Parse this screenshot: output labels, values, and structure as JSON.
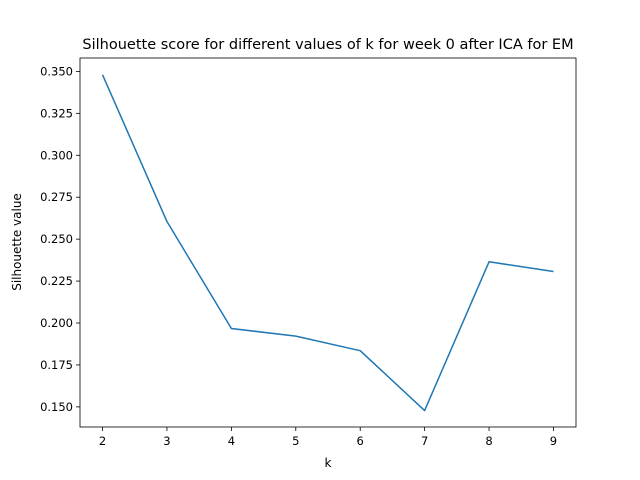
{
  "chart_data": {
    "type": "line",
    "title": "Silhouette score for different values of k for week 0 after ICA for EM",
    "xlabel": "k",
    "ylabel": "Silhouette value",
    "x": [
      2,
      3,
      4,
      5,
      6,
      7,
      8,
      9
    ],
    "series": [
      {
        "values": [
          0.348,
          0.2605,
          0.1967,
          0.1922,
          0.1835,
          0.1478,
          0.2365,
          0.2307
        ]
      }
    ],
    "xlim": [
      1.65,
      9.35
    ],
    "ylim": [
      0.138,
      0.358
    ],
    "xticks": [
      "2",
      "3",
      "4",
      "5",
      "6",
      "7",
      "8",
      "9"
    ],
    "yticks": [
      "0.150",
      "0.175",
      "0.200",
      "0.225",
      "0.250",
      "0.275",
      "0.300",
      "0.325",
      "0.350"
    ],
    "grid": false,
    "colors": {
      "line": "#1f77b4",
      "axes": "#000000",
      "background": "#ffffff"
    }
  }
}
